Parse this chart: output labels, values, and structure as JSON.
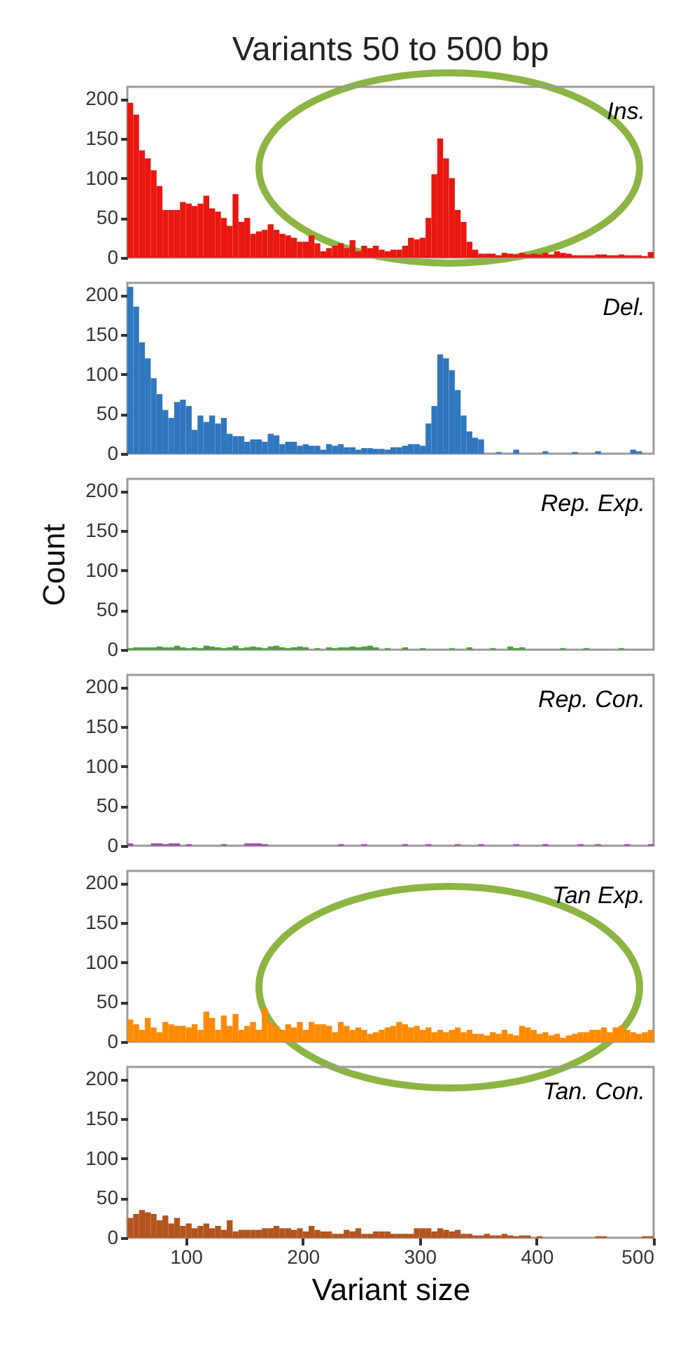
{
  "chart_data": [
    {
      "type": "histogram",
      "title": "Variants 50 to 500 bp",
      "annotations": [
        "Ins."
      ],
      "color": "#e8170f",
      "bins": [
        50,
        55,
        60,
        65,
        70,
        75,
        80,
        85,
        90,
        95,
        100,
        105,
        110,
        115,
        120,
        125,
        130,
        135,
        140,
        145,
        150,
        155,
        160,
        165,
        170,
        175,
        180,
        185,
        190,
        195,
        200,
        205,
        210,
        215,
        220,
        225,
        230,
        235,
        240,
        245,
        250,
        255,
        260,
        265,
        270,
        275,
        280,
        285,
        290,
        295,
        300,
        305,
        310,
        315,
        320,
        325,
        330,
        335,
        340,
        345,
        350,
        355,
        360,
        365,
        370,
        375,
        380,
        385,
        390,
        395,
        400,
        405,
        410,
        415,
        420,
        425,
        430,
        435,
        440,
        445,
        450,
        455,
        460,
        465,
        470,
        475,
        480,
        485,
        490,
        495,
        500
      ],
      "values": [
        195,
        180,
        135,
        125,
        110,
        90,
        60,
        60,
        60,
        70,
        68,
        65,
        68,
        78,
        62,
        58,
        50,
        40,
        80,
        45,
        50,
        30,
        33,
        35,
        42,
        35,
        30,
        28,
        25,
        20,
        20,
        28,
        18,
        8,
        12,
        15,
        18,
        12,
        22,
        8,
        15,
        12,
        15,
        10,
        8,
        10,
        10,
        15,
        25,
        23,
        25,
        50,
        105,
        150,
        125,
        100,
        60,
        45,
        20,
        10,
        5,
        5,
        5,
        3,
        6,
        5,
        4,
        6,
        4,
        5,
        4,
        6,
        4,
        8,
        6,
        5,
        3,
        3,
        3,
        3,
        4,
        4,
        3,
        3,
        4,
        3,
        3,
        3,
        2,
        7
      ],
      "xlim": [
        50,
        500
      ],
      "ylim": [
        0,
        215
      ],
      "xticks": [
        100,
        200,
        300,
        400,
        500
      ],
      "yticks": [
        0,
        50,
        100,
        150,
        200
      ],
      "tick_labels": "y",
      "grid": false,
      "legend": false
    },
    {
      "type": "histogram",
      "annotations": [
        "Del."
      ],
      "color": "#2f77bf",
      "bins": [
        50,
        55,
        60,
        65,
        70,
        75,
        80,
        85,
        90,
        95,
        100,
        105,
        110,
        115,
        120,
        125,
        130,
        135,
        140,
        145,
        150,
        155,
        160,
        165,
        170,
        175,
        180,
        185,
        190,
        195,
        200,
        205,
        210,
        215,
        220,
        225,
        230,
        235,
        240,
        245,
        250,
        255,
        260,
        265,
        270,
        275,
        280,
        285,
        290,
        295,
        300,
        305,
        310,
        315,
        320,
        325,
        330,
        335,
        340,
        345,
        350,
        355,
        360,
        365,
        370,
        375,
        380,
        385,
        390,
        395,
        400,
        405,
        410,
        415,
        420,
        425,
        430,
        435,
        440,
        445,
        450,
        455,
        460,
        465,
        470,
        475,
        480,
        485,
        490,
        495,
        500
      ],
      "values": [
        210,
        185,
        140,
        120,
        95,
        75,
        55,
        45,
        65,
        68,
        60,
        30,
        48,
        40,
        48,
        38,
        45,
        25,
        22,
        22,
        15,
        18,
        18,
        15,
        25,
        23,
        12,
        15,
        15,
        10,
        12,
        10,
        10,
        5,
        12,
        10,
        12,
        8,
        8,
        5,
        7,
        7,
        6,
        6,
        5,
        8,
        8,
        10,
        12,
        12,
        10,
        38,
        60,
        125,
        120,
        105,
        80,
        48,
        28,
        20,
        18,
        0,
        0,
        2,
        0,
        0,
        5,
        0,
        0,
        0,
        0,
        3,
        0,
        0,
        0,
        0,
        2,
        0,
        0,
        0,
        3,
        0,
        0,
        0,
        0,
        0,
        5,
        3,
        0,
        0
      ],
      "xlim": [
        50,
        500
      ],
      "ylim": [
        0,
        215
      ],
      "xticks": [
        100,
        200,
        300,
        400,
        500
      ],
      "yticks": [
        0,
        50,
        100,
        150,
        200
      ],
      "tick_labels": "y",
      "grid": false,
      "legend": false
    },
    {
      "type": "histogram",
      "annotations": [
        "Rep. Exp."
      ],
      "ylabel": "Count",
      "color": "#4f9a3f",
      "bins": [
        50,
        55,
        60,
        65,
        70,
        75,
        80,
        85,
        90,
        95,
        100,
        105,
        110,
        115,
        120,
        125,
        130,
        135,
        140,
        145,
        150,
        155,
        160,
        165,
        170,
        175,
        180,
        185,
        190,
        195,
        200,
        205,
        210,
        215,
        220,
        225,
        230,
        235,
        240,
        245,
        250,
        255,
        260,
        265,
        270,
        275,
        280,
        285,
        290,
        295,
        300,
        305,
        310,
        315,
        320,
        325,
        330,
        335,
        340,
        345,
        350,
        355,
        360,
        365,
        370,
        375,
        380,
        385,
        390,
        395,
        400,
        405,
        410,
        415,
        420,
        425,
        430,
        435,
        440,
        445,
        450,
        455,
        460,
        465,
        470,
        475,
        480,
        485,
        490,
        495,
        500
      ],
      "values": [
        2,
        3,
        3,
        3,
        3,
        4,
        3,
        3,
        5,
        3,
        2,
        3,
        2,
        5,
        4,
        3,
        2,
        3,
        5,
        2,
        3,
        4,
        3,
        2,
        4,
        5,
        3,
        2,
        3,
        4,
        3,
        0,
        2,
        0,
        3,
        2,
        3,
        3,
        4,
        3,
        4,
        5,
        3,
        0,
        2,
        0,
        0,
        3,
        0,
        0,
        2,
        0,
        0,
        0,
        0,
        2,
        0,
        0,
        3,
        0,
        0,
        0,
        2,
        0,
        0,
        4,
        2,
        3,
        0,
        0,
        0,
        0,
        0,
        0,
        2,
        0,
        0,
        0,
        2,
        0,
        0,
        0,
        0,
        0,
        2,
        0,
        0,
        0,
        0,
        0
      ],
      "xlim": [
        50,
        500
      ],
      "ylim": [
        0,
        215
      ],
      "xticks": [
        100,
        200,
        300,
        400,
        500
      ],
      "yticks": [
        0,
        50,
        100,
        150,
        200
      ],
      "tick_labels": "y",
      "grid": false,
      "legend": false
    },
    {
      "type": "histogram",
      "annotations": [
        "Rep. Con."
      ],
      "color": "#9b4fa6",
      "bins": [
        50,
        55,
        60,
        65,
        70,
        75,
        80,
        85,
        90,
        95,
        100,
        105,
        110,
        115,
        120,
        125,
        130,
        135,
        140,
        145,
        150,
        155,
        160,
        165,
        170,
        175,
        180,
        185,
        190,
        195,
        200,
        205,
        210,
        215,
        220,
        225,
        230,
        235,
        240,
        245,
        250,
        255,
        260,
        265,
        270,
        275,
        280,
        285,
        290,
        295,
        300,
        305,
        310,
        315,
        320,
        325,
        330,
        335,
        340,
        345,
        350,
        355,
        360,
        365,
        370,
        375,
        380,
        385,
        390,
        395,
        400,
        405,
        410,
        415,
        420,
        425,
        430,
        435,
        440,
        445,
        450,
        455,
        460,
        465,
        470,
        475,
        480,
        485,
        490,
        495,
        500
      ],
      "values": [
        3,
        0,
        0,
        0,
        3,
        3,
        2,
        3,
        3,
        0,
        2,
        0,
        0,
        0,
        0,
        0,
        2,
        0,
        0,
        0,
        3,
        3,
        3,
        2,
        0,
        0,
        0,
        0,
        0,
        0,
        0,
        0,
        0,
        0,
        0,
        0,
        2,
        0,
        0,
        0,
        2,
        0,
        0,
        0,
        0,
        0,
        0,
        2,
        0,
        0,
        0,
        2,
        0,
        0,
        0,
        0,
        2,
        0,
        0,
        0,
        2,
        0,
        0,
        0,
        0,
        0,
        2,
        0,
        0,
        0,
        0,
        2,
        0,
        0,
        0,
        0,
        0,
        2,
        0,
        0,
        2,
        0,
        0,
        0,
        0,
        2,
        0,
        0,
        0,
        2
      ],
      "xlim": [
        50,
        500
      ],
      "ylim": [
        0,
        215
      ],
      "xticks": [
        100,
        200,
        300,
        400,
        500
      ],
      "yticks": [
        0,
        50,
        100,
        150,
        200
      ],
      "tick_labels": "y",
      "grid": false,
      "legend": false
    },
    {
      "type": "histogram",
      "annotations": [
        "Tan Exp."
      ],
      "color": "#ff8a00",
      "bins": [
        50,
        55,
        60,
        65,
        70,
        75,
        80,
        85,
        90,
        95,
        100,
        105,
        110,
        115,
        120,
        125,
        130,
        135,
        140,
        145,
        150,
        155,
        160,
        165,
        170,
        175,
        180,
        185,
        190,
        195,
        200,
        205,
        210,
        215,
        220,
        225,
        230,
        235,
        240,
        245,
        250,
        255,
        260,
        265,
        270,
        275,
        280,
        285,
        290,
        295,
        300,
        305,
        310,
        315,
        320,
        325,
        330,
        335,
        340,
        345,
        350,
        355,
        360,
        365,
        370,
        375,
        380,
        385,
        390,
        395,
        400,
        405,
        410,
        415,
        420,
        425,
        430,
        435,
        440,
        445,
        450,
        455,
        460,
        465,
        470,
        475,
        480,
        485,
        490,
        495,
        500
      ],
      "values": [
        28,
        22,
        15,
        30,
        18,
        12,
        25,
        22,
        20,
        20,
        18,
        22,
        15,
        38,
        30,
        15,
        33,
        20,
        35,
        15,
        20,
        25,
        15,
        42,
        25,
        20,
        15,
        22,
        18,
        25,
        15,
        25,
        22,
        22,
        20,
        12,
        25,
        20,
        15,
        18,
        15,
        10,
        12,
        15,
        18,
        20,
        25,
        22,
        18,
        20,
        15,
        18,
        12,
        15,
        12,
        15,
        18,
        12,
        15,
        10,
        10,
        8,
        12,
        10,
        15,
        10,
        8,
        20,
        18,
        15,
        10,
        12,
        8,
        10,
        5,
        8,
        10,
        12,
        12,
        15,
        15,
        18,
        12,
        18,
        20,
        15,
        12,
        10,
        12,
        15
      ],
      "xlim": [
        50,
        500
      ],
      "ylim": [
        0,
        215
      ],
      "xticks": [
        100,
        200,
        300,
        400,
        500
      ],
      "yticks": [
        0,
        50,
        100,
        150,
        200
      ],
      "tick_labels": "y",
      "grid": false,
      "legend": false
    },
    {
      "type": "histogram",
      "annotations": [
        "Tan. Con."
      ],
      "xlabel": "Variant size",
      "color": "#b3541e",
      "bins": [
        50,
        55,
        60,
        65,
        70,
        75,
        80,
        85,
        90,
        95,
        100,
        105,
        110,
        115,
        120,
        125,
        130,
        135,
        140,
        145,
        150,
        155,
        160,
        165,
        170,
        175,
        180,
        185,
        190,
        195,
        200,
        205,
        210,
        215,
        220,
        225,
        230,
        235,
        240,
        245,
        250,
        255,
        260,
        265,
        270,
        275,
        280,
        285,
        290,
        295,
        300,
        305,
        310,
        315,
        320,
        325,
        330,
        335,
        340,
        345,
        350,
        355,
        360,
        365,
        370,
        375,
        380,
        385,
        390,
        395,
        400,
        405,
        410,
        415,
        420,
        425,
        430,
        435,
        440,
        445,
        450,
        455,
        460,
        465,
        470,
        475,
        480,
        485,
        490,
        495,
        500
      ],
      "values": [
        25,
        30,
        35,
        32,
        30,
        22,
        28,
        18,
        25,
        15,
        18,
        12,
        15,
        18,
        12,
        15,
        10,
        22,
        8,
        10,
        10,
        10,
        10,
        12,
        12,
        15,
        12,
        12,
        10,
        12,
        8,
        15,
        10,
        8,
        8,
        5,
        5,
        10,
        8,
        12,
        5,
        5,
        8,
        8,
        8,
        5,
        5,
        5,
        5,
        12,
        12,
        12,
        8,
        12,
        10,
        8,
        10,
        5,
        5,
        3,
        3,
        5,
        3,
        3,
        5,
        3,
        2,
        3,
        3,
        0,
        2,
        0,
        0,
        0,
        0,
        0,
        0,
        0,
        0,
        0,
        2,
        2,
        0,
        0,
        0,
        0,
        0,
        0,
        2,
        2
      ],
      "xlim": [
        50,
        500
      ],
      "ylim": [
        0,
        215
      ],
      "xticks": [
        100,
        200,
        300,
        400,
        500
      ],
      "yticks": [
        0,
        50,
        100,
        150,
        200
      ],
      "grid": false,
      "legend": false
    }
  ]
}
